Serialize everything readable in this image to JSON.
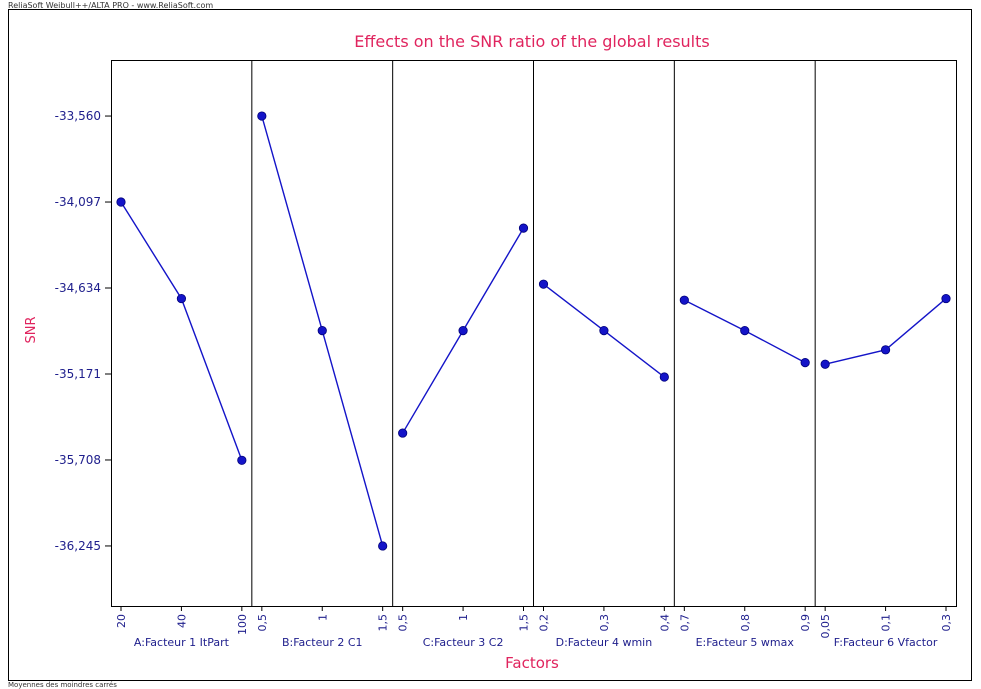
{
  "header": {
    "source": "ReliaSoft Weibull++/ALTA PRO - www.ReliaSoft.com"
  },
  "footer": {
    "note": "Moyennes des moindres carrés"
  },
  "colors": {
    "title": "#e0245e",
    "axis_text": "#1e1e8c",
    "series": "#1414c8",
    "frame": "#000000"
  },
  "chart_data": {
    "type": "line",
    "title": "Effects on the SNR ratio of the global results",
    "xlabel": "Factors",
    "ylabel": "SNR",
    "ylim": [
      -36.62,
      -33.21
    ],
    "y_ticks": [
      -33.56,
      -34.097,
      -34.634,
      -35.171,
      -35.708,
      -36.245
    ],
    "y_tick_labels": [
      "-33,560",
      "-34,097",
      "-34,634",
      "-35,171",
      "-35,708",
      "-36,245"
    ],
    "grid": false,
    "panels": [
      {
        "factor": "A:Facteur 1 ItPart",
        "x": [
          20,
          40,
          100
        ],
        "x_tick_labels": [
          "20",
          "40",
          "100"
        ],
        "y": [
          -34.097,
          -34.7,
          -35.71
        ]
      },
      {
        "factor": "B:Facteur 2 C1",
        "x": [
          0.5,
          1,
          1.5
        ],
        "x_tick_labels": [
          "0,5",
          "1",
          "1,5"
        ],
        "y": [
          -33.56,
          -34.9,
          -36.245
        ]
      },
      {
        "factor": "C:Facteur 3 C2",
        "x": [
          0.5,
          1,
          1.5
        ],
        "x_tick_labels": [
          "0,5",
          "1",
          "1,5"
        ],
        "y": [
          -35.54,
          -34.9,
          -34.26
        ]
      },
      {
        "factor": "D:Facteur 4 wmin",
        "x": [
          0.2,
          0.3,
          0.4
        ],
        "x_tick_labels": [
          "0,2",
          "0,3",
          "0,4"
        ],
        "y": [
          -34.61,
          -34.9,
          -35.19
        ]
      },
      {
        "factor": "E:Facteur 5 wmax",
        "x": [
          0.7,
          0.8,
          0.9
        ],
        "x_tick_labels": [
          "0,7",
          "0,8",
          "0,9"
        ],
        "y": [
          -34.71,
          -34.9,
          -35.1
        ]
      },
      {
        "factor": "F:Facteur 6 Vfactor",
        "x": [
          0.05,
          0.1,
          0.3
        ],
        "x_tick_labels": [
          "0,05",
          "0,1",
          "0,3"
        ],
        "y": [
          -35.11,
          -35.02,
          -34.7
        ]
      }
    ]
  }
}
